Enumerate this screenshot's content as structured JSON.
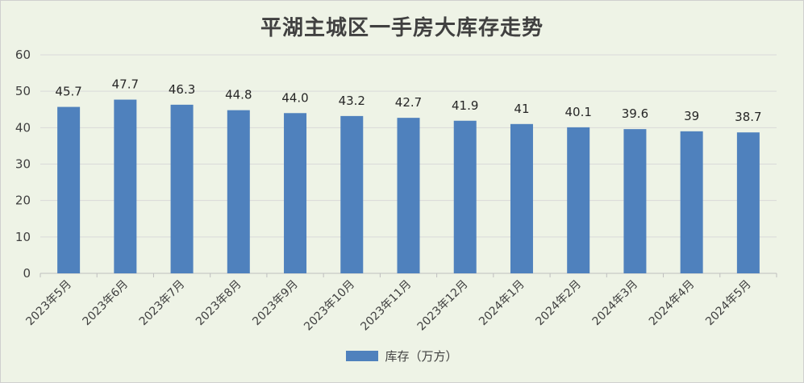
{
  "chart_data": {
    "type": "bar",
    "title": "平湖主城区一手房大库存走势",
    "categories": [
      "2023年5月",
      "2023年6月",
      "2023年7月",
      "2023年8月",
      "2023年9月",
      "2023年10月",
      "2023年11月",
      "2023年12月",
      "2024年1月",
      "2024年2月",
      "2024年3月",
      "2024年4月",
      "2024年5月"
    ],
    "series": [
      {
        "name": "库存（万方）",
        "values": [
          45.7,
          47.7,
          46.3,
          44.8,
          44.0,
          43.2,
          42.7,
          41.9,
          41,
          40.1,
          39.6,
          39,
          38.7
        ],
        "labels": [
          "45.7",
          "47.7",
          "46.3",
          "44.8",
          "44.0",
          "43.2",
          "42.7",
          "41.9",
          "41",
          "40.1",
          "39.6",
          "39",
          "38.7"
        ],
        "color": "#4f81bd"
      }
    ],
    "ylim": [
      0,
      60
    ],
    "yticks": [
      "0",
      "10",
      "20",
      "30",
      "40",
      "50",
      "60"
    ],
    "grid": true,
    "legend_position": "bottom"
  }
}
